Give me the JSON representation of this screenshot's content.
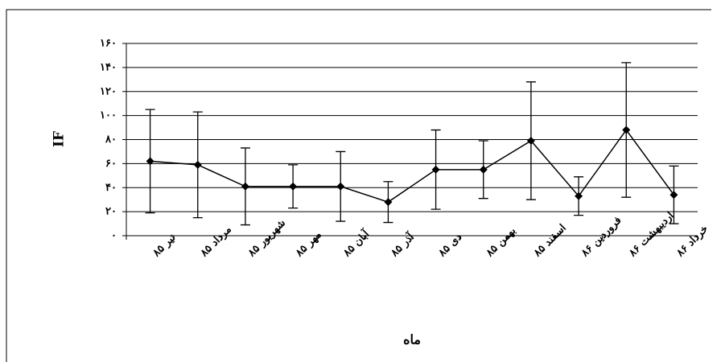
{
  "chart_data": {
    "type": "line",
    "x_label": "ماه",
    "y_label": "IF",
    "categories": [
      "تیر ۸۵",
      "مرداد ۸۵",
      "شهریور ۸۵",
      "مهر ۸۵",
      "آبان ۸۵",
      "آذر ۸۵",
      "دی ۸۵",
      "بهمن ۸۵",
      "اسفند ۸۵",
      "فروردین ۸۶",
      "اردیبهشت ۸۶",
      "خرداد ۸۶"
    ],
    "values": [
      62,
      59,
      41,
      41,
      41,
      28,
      55,
      55,
      79,
      33,
      88,
      34
    ],
    "errors": [
      43,
      44,
      32,
      18,
      29,
      17,
      33,
      24,
      49,
      16,
      56,
      24
    ],
    "color": "#000000",
    "ylim": [
      0,
      160
    ],
    "yticks": [
      {
        "value": 0,
        "label": "۰"
      },
      {
        "value": 20,
        "label": "۲۰"
      },
      {
        "value": 40,
        "label": "۴۰"
      },
      {
        "value": 60,
        "label": "۶۰"
      },
      {
        "value": 80,
        "label": "۸۰"
      },
      {
        "value": 100,
        "label": "۱۰۰"
      },
      {
        "value": 120,
        "label": "۱۲۰"
      },
      {
        "value": 140,
        "label": "۱۴۰"
      },
      {
        "value": 160,
        "label": "۱۶۰"
      }
    ],
    "grid": true
  }
}
